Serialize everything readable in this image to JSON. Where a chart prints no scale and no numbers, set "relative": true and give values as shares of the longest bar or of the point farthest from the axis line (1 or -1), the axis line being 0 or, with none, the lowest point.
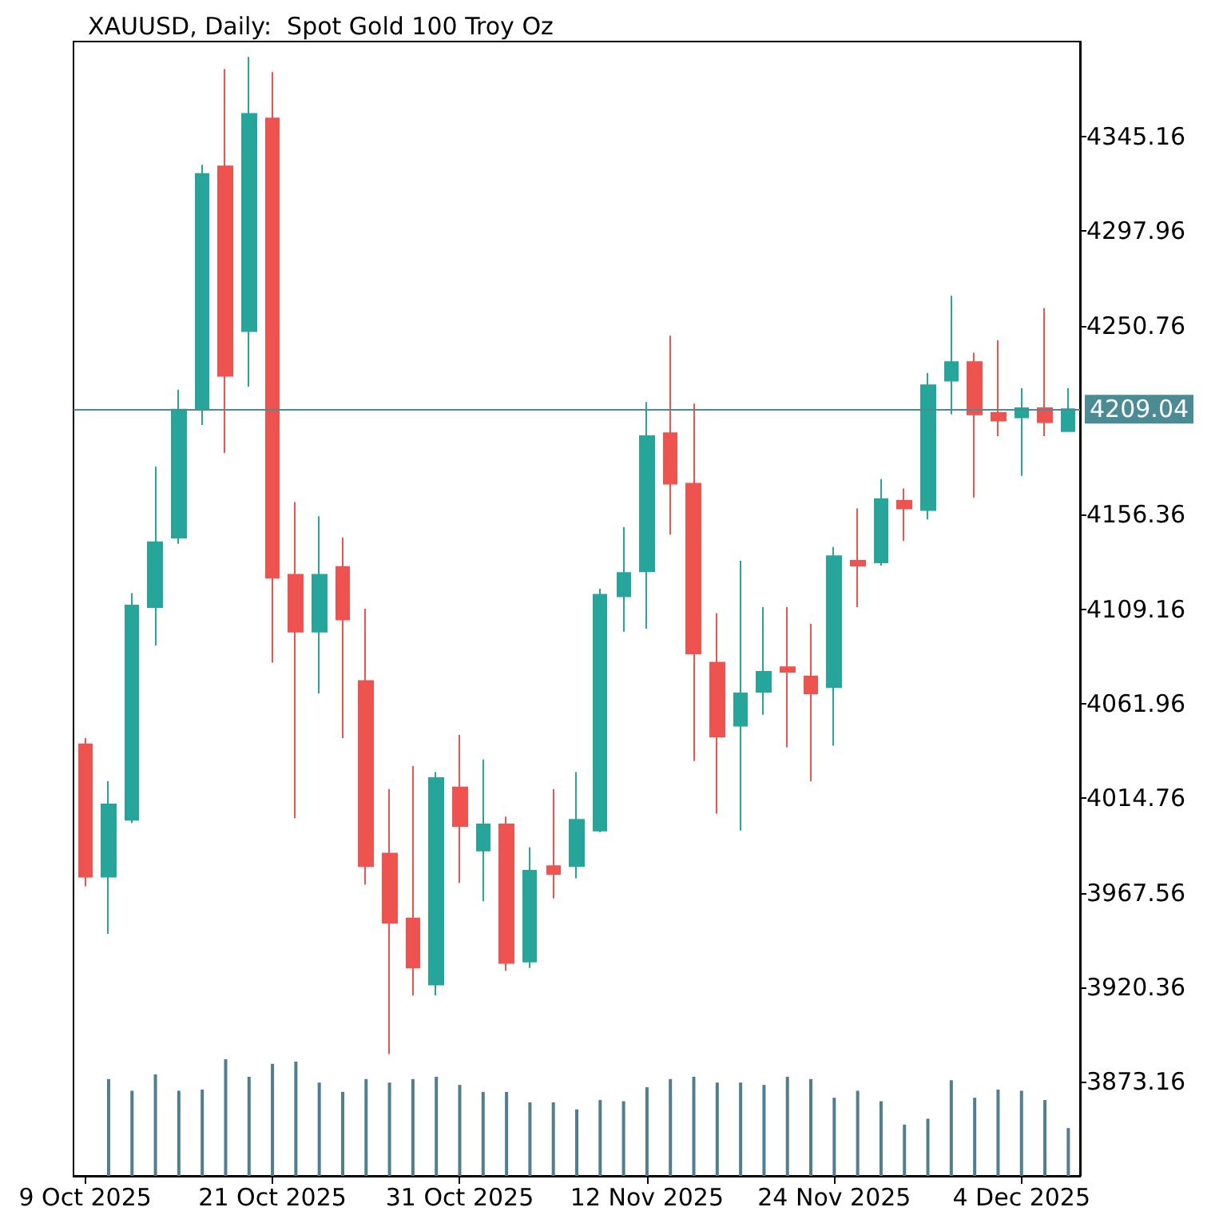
{
  "chart_data": [
    {
      "type": "candlestick",
      "title": "XAUUSD, Daily:  Spot Gold 100 Troy Oz",
      "categories": [
        "9 Oct 2025",
        null,
        null,
        null,
        null,
        null,
        null,
        null,
        "21 Oct 2025",
        null,
        null,
        null,
        null,
        null,
        null,
        null,
        "31 Oct 2025",
        null,
        null,
        null,
        null,
        null,
        null,
        null,
        "12 Nov 2025",
        null,
        null,
        null,
        null,
        null,
        null,
        null,
        "24 Nov 2025",
        null,
        null,
        null,
        null,
        null,
        null,
        null,
        "4 Dec 2025",
        null,
        null
      ],
      "ohlc": [
        [
          4041.7,
          4044.8,
          3970.8,
          3975.6
        ],
        [
          3975.6,
          4023.3,
          3947.1,
          4011.7
        ],
        [
          4004.0,
          4117.2,
          4002.4,
          4111.0
        ],
        [
          4110.2,
          4180.3,
          4091.0,
          4142.6
        ],
        [
          4144.9,
          4218.8,
          4141.8,
          4208.8
        ],
        [
          4208.8,
          4331.1,
          4201.1,
          4326.5
        ],
        [
          4330.3,
          4378.8,
          4187.2,
          4225.7
        ],
        [
          4248.0,
          4384.9,
          4220.3,
          4356.5
        ],
        [
          4354.2,
          4377.3,
          4082.5,
          4124.9
        ],
        [
          4126.4,
          4162.6,
          4004.8,
          4097.9
        ],
        [
          4097.9,
          4155.6,
          4067.1,
          4126.4
        ],
        [
          4130.2,
          4144.9,
          4044.8,
          4104.0
        ],
        [
          4073.3,
          4109.4,
          3971.7,
          3980.9
        ],
        [
          3987.1,
          4019.4,
          3887.0,
          3952.5
        ],
        [
          3954.7,
          4030.9,
          3916.3,
          3930.2
        ],
        [
          3921.7,
          4027.8,
          3916.3,
          4024.8
        ],
        [
          4020.2,
          4046.4,
          3972.5,
          4000.9
        ],
        [
          3988.6,
          4034.1,
          3963.3,
          4001.7
        ],
        [
          4001.7,
          4005.6,
          3928.6,
          3932.5
        ],
        [
          3933.2,
          3990.2,
          3930.0,
          3978.6
        ],
        [
          3980.9,
          4019.4,
          3964.8,
          3977.0
        ],
        [
          3980.9,
          4027.8,
          3974.8,
          4004.0
        ],
        [
          3998.6,
          4119.4,
          3997.8,
          4116.4
        ],
        [
          4115.6,
          4150.2,
          4097.9,
          4127.2
        ],
        [
          4128.0,
          4212.6,
          4099.4,
          4195.6
        ],
        [
          4197.1,
          4245.7,
          4146.4,
          4171.8
        ],
        [
          4171.8,
          4211.8,
          4033.3,
          4087.1
        ],
        [
          4082.5,
          4107.2,
          4007.1,
          4045.6
        ],
        [
          4051.0,
          4133.3,
          3998.6,
          4067.1
        ],
        [
          4067.9,
          4110.2,
          4056.4,
          4077.9
        ],
        [
          4080.2,
          4110.2,
          4040.2,
          4077.9
        ],
        [
          4075.6,
          4101.8,
          4023.2,
          4067.1
        ],
        [
          4070.2,
          4140.2,
          4041.0,
          4135.6
        ],
        [
          4133.3,
          4159.5,
          4110.2,
          4130.9
        ],
        [
          4132.5,
          4174.1,
          4130.9,
          4164.1
        ],
        [
          4163.3,
          4169.4,
          4143.3,
          4159.5
        ],
        [
          4158.7,
          4227.1,
          4154.0,
          4221.0
        ],
        [
          4223.3,
          4265.7,
          4206.4,
          4232.6
        ],
        [
          4232.6,
          4237.2,
          4164.9,
          4206.4
        ],
        [
          4207.2,
          4243.4,
          4195.6,
          4203.3
        ],
        [
          4204.9,
          4219.5,
          4175.7,
          4209.5
        ],
        [
          4209.5,
          4259.5,
          4195.6,
          4202.5
        ],
        [
          4198.0,
          4219.5,
          4198.0,
          4209.04
        ]
      ],
      "colors": [
        "#ef5350",
        "#26a69a",
        "#26a69a",
        "#26a69a",
        "#26a69a",
        "#26a69a",
        "#ef5350",
        "#26a69a",
        "#ef5350",
        "#ef5350",
        "#26a69a",
        "#ef5350",
        "#ef5350",
        "#ef5350",
        "#ef5350",
        "#26a69a",
        "#ef5350",
        "#26a69a",
        "#ef5350",
        "#26a69a",
        "#ef5350",
        "#26a69a",
        "#26a69a",
        "#26a69a",
        "#26a69a",
        "#ef5350",
        "#ef5350",
        "#ef5350",
        "#26a69a",
        "#26a69a",
        "#ef5350",
        "#ef5350",
        "#26a69a",
        "#ef5350",
        "#26a69a",
        "#ef5350",
        "#26a69a",
        "#26a69a",
        "#ef5350",
        "#ef5350",
        "#26a69a",
        "#ef5350",
        "#26a69a"
      ],
      "ylim": [
        3826.2,
        4392.6
      ],
      "yticks": [
        3873.16,
        3920.36,
        3967.56,
        4014.76,
        4061.96,
        4109.16,
        4156.36,
        4250.76,
        4297.96,
        4345.16
      ],
      "ref_lines": [
        {
          "axis": "y",
          "value": 4209.04,
          "label": "4209.04",
          "color": "#4b8c94"
        }
      ]
    },
    {
      "type": "bar",
      "relative": true,
      "color": "#4f7f8f",
      "categories": [
        null,
        null,
        null,
        null,
        null,
        null,
        null,
        null,
        null,
        null,
        null,
        null,
        null,
        null,
        null,
        null,
        null,
        null,
        null,
        null,
        null,
        null,
        null,
        null,
        null,
        null,
        null,
        null,
        null,
        null,
        null,
        null,
        null,
        null,
        null,
        null,
        null,
        null,
        null,
        null,
        null,
        null,
        null
      ],
      "values": [
        null,
        0.83,
        0.73,
        0.87,
        0.73,
        0.74,
        1,
        0.85,
        0.96,
        0.98,
        0.8,
        0.72,
        0.83,
        0.8,
        0.83,
        0.85,
        0.78,
        0.72,
        0.72,
        0.63,
        0.63,
        0.57,
        0.65,
        0.64,
        0.76,
        0.83,
        0.85,
        0.8,
        0.8,
        0.78,
        0.85,
        0.83,
        0.67,
        0.73,
        0.64,
        0.44,
        0.49,
        0.82,
        0.67,
        0.74,
        0.73,
        0.65,
        0.41
      ]
    }
  ]
}
